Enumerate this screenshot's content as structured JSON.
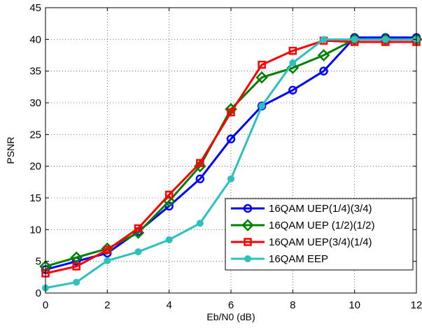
{
  "chart_data": {
    "type": "line",
    "title": "",
    "xlabel": "Eb/N0 (dB)",
    "ylabel": "PSNR",
    "xlim": [
      0,
      12
    ],
    "ylim": [
      0,
      45
    ],
    "xticks": [
      0,
      2,
      4,
      6,
      8,
      10,
      12
    ],
    "yticks": [
      0,
      5,
      10,
      15,
      20,
      25,
      30,
      35,
      40,
      45
    ],
    "grid": true,
    "legend_position": "bottom-right",
    "x": [
      0,
      1,
      2,
      3,
      4,
      5,
      6,
      7,
      8,
      9,
      10,
      11,
      12
    ],
    "series": [
      {
        "name": "16QAM UEP(1/4)(3/4)",
        "color": "#0000ff",
        "marker": "circle-open",
        "values": [
          3.7,
          5.0,
          6.3,
          9.7,
          13.7,
          18.0,
          24.3,
          29.5,
          32.0,
          35.0,
          40.3,
          40.3,
          40.3
        ]
      },
      {
        "name": "16QAM UEP (1/2)(1/2)",
        "color": "#008000",
        "marker": "diamond-open",
        "values": [
          4.2,
          5.6,
          7.0,
          9.5,
          14.5,
          20.0,
          29.0,
          34.0,
          35.5,
          37.5,
          40.0,
          40.0,
          40.0
        ]
      },
      {
        "name": "16QAM UEP(3/4)(1/4)",
        "color": "#ff0000",
        "marker": "square-open",
        "values": [
          3.1,
          4.2,
          6.8,
          10.2,
          15.5,
          20.5,
          28.5,
          36.0,
          38.2,
          39.8,
          39.6,
          39.6,
          39.6
        ]
      },
      {
        "name": "16QAM EEP",
        "color": "#2ebfbf",
        "marker": "circle-filled",
        "values": [
          0.8,
          1.7,
          5.1,
          6.5,
          8.4,
          11.0,
          18.0,
          29.5,
          36.3,
          40.0,
          40.0,
          40.0,
          40.0
        ]
      }
    ]
  }
}
